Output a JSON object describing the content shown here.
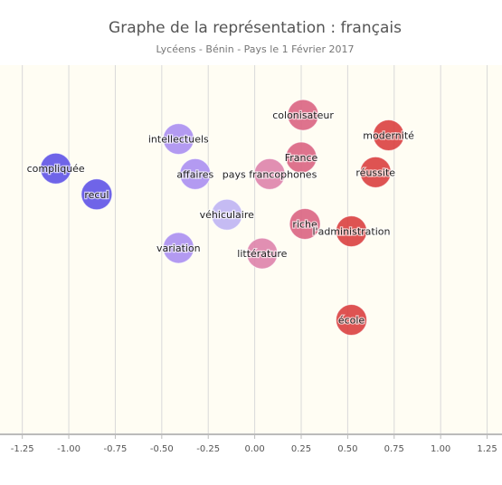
{
  "chart_data": {
    "type": "scatter",
    "title": "Graphe de la représentation : français",
    "subtitle": "Lycéens - Bénin - Pays le 1 Février 2017",
    "xlabel": "",
    "ylabel": "",
    "xlim": [
      -1.37,
      1.33
    ],
    "ylim": [
      -1.0,
      1.0
    ],
    "x_ticks": [
      -1.25,
      -1.0,
      -0.75,
      -0.5,
      -0.25,
      0.0,
      0.25,
      0.5,
      0.75,
      1.0,
      1.25
    ],
    "x_tick_labels": [
      "-1.25",
      "-1.00",
      "-0.75",
      "-0.50",
      "-0.25",
      "0.00",
      "0.25",
      "0.50",
      "0.75",
      "1.00",
      "1.25"
    ],
    "grid": "vertical",
    "legend": "none",
    "colors": {
      "plot_background": "#fffdf3",
      "grid": "#d9d9d9",
      "axis": "#bbbbbb",
      "blue": "#5b4ee6",
      "violet": "#a98cf0",
      "lavender": "#bdb2f3",
      "pink": "#dd7fa8",
      "rose": "#d9607e",
      "red": "#d93b3b"
    },
    "points": [
      {
        "label": "compliquée",
        "x": -1.07,
        "y": 0.44,
        "color": "blue"
      },
      {
        "label": "recul",
        "x": -0.85,
        "y": 0.3,
        "color": "blue"
      },
      {
        "label": "intellectuels",
        "x": -0.41,
        "y": 0.6,
        "color": "violet"
      },
      {
        "label": "affaires",
        "x": -0.32,
        "y": 0.41,
        "color": "violet"
      },
      {
        "label": "variation",
        "x": -0.41,
        "y": 0.01,
        "color": "violet"
      },
      {
        "label": "véhiculaire",
        "x": -0.15,
        "y": 0.19,
        "color": "lavender"
      },
      {
        "label": "pays francophones",
        "x": 0.08,
        "y": 0.41,
        "color": "pink"
      },
      {
        "label": "littérature",
        "x": 0.04,
        "y": -0.02,
        "color": "pink"
      },
      {
        "label": "colonisateur",
        "x": 0.26,
        "y": 0.73,
        "color": "rose"
      },
      {
        "label": "France",
        "x": 0.25,
        "y": 0.5,
        "color": "rose"
      },
      {
        "label": "riche",
        "x": 0.27,
        "y": 0.14,
        "color": "rose"
      },
      {
        "label": "modernité",
        "x": 0.72,
        "y": 0.62,
        "color": "red"
      },
      {
        "label": "réussite",
        "x": 0.65,
        "y": 0.42,
        "color": "red"
      },
      {
        "label": "l'administration",
        "x": 0.52,
        "y": 0.1,
        "color": "red"
      },
      {
        "label": "école",
        "x": 0.52,
        "y": -0.38,
        "color": "red"
      }
    ]
  }
}
